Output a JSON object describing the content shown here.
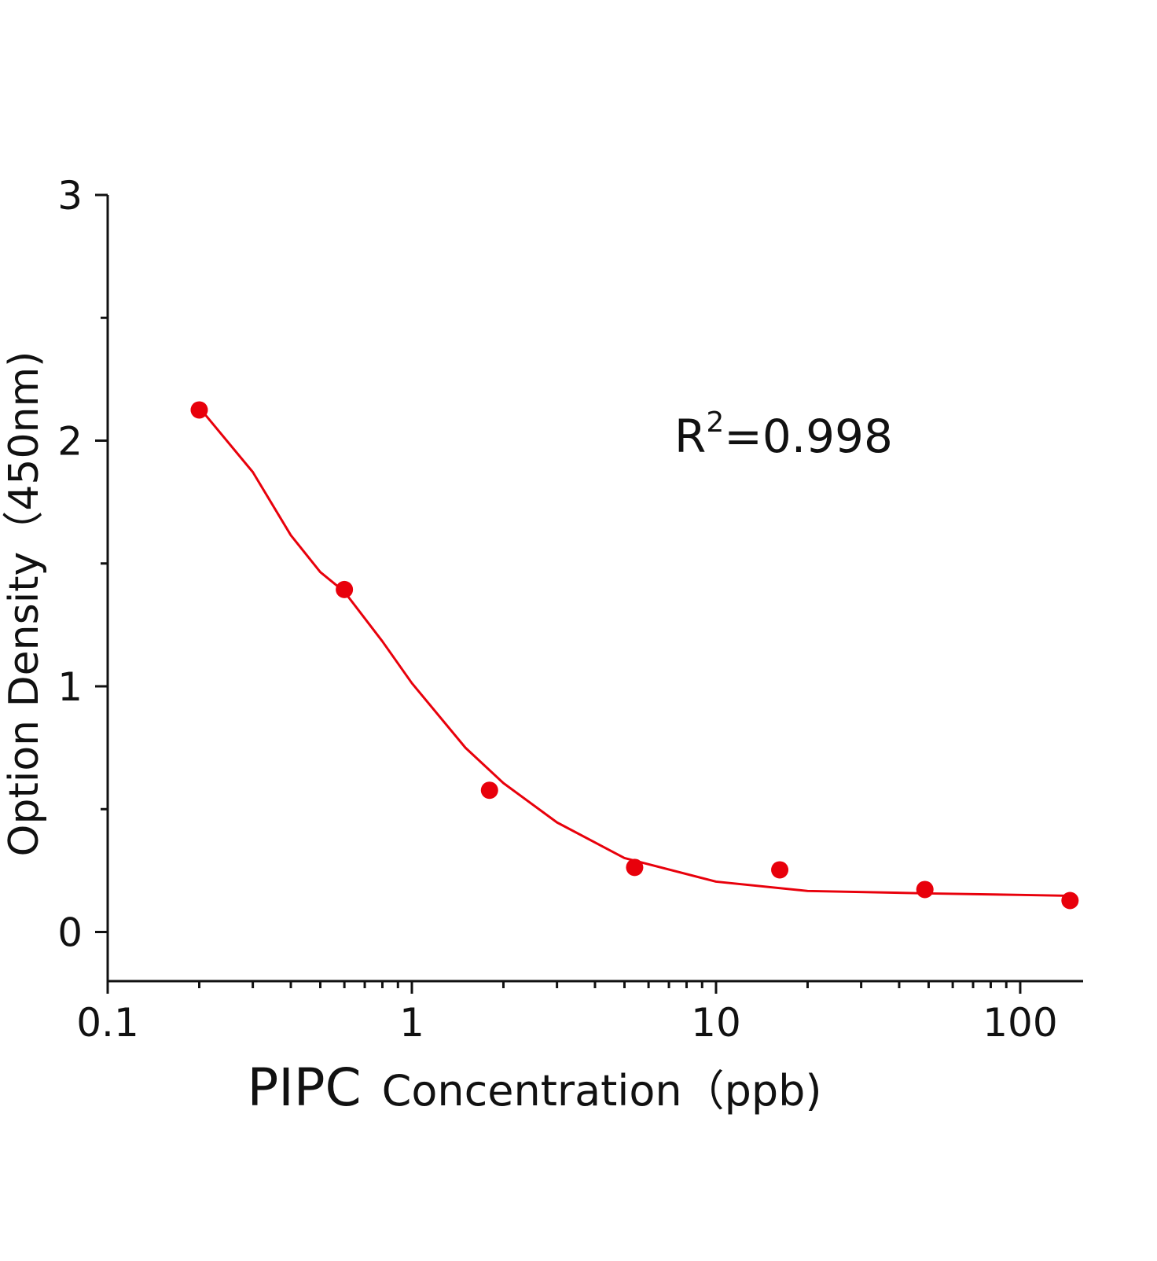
{
  "chart_data": {
    "type": "scatter",
    "xlabel": [
      "PIPC",
      "Concentration（ppb)"
    ],
    "ylabel": "Option Density（450nm)",
    "annotation": {
      "base": "R",
      "sup": "2",
      "text": "=0.998"
    },
    "xscale": "log",
    "xlim": [
      0.1,
      161
    ],
    "xticks": [
      0.1,
      1,
      10,
      100
    ],
    "ylim": [
      -0.2,
      3
    ],
    "yticks": [
      0,
      1,
      2,
      3
    ],
    "x": [
      0.2,
      0.6,
      1.8,
      5.4,
      16.2,
      48.6,
      145.8
    ],
    "series": [
      {
        "color": "#e8000b",
        "values": [
          2.125,
          1.394,
          0.577,
          0.263,
          0.253,
          0.173,
          0.128
        ]
      }
    ],
    "fit": {
      "color": "#e8000b",
      "x": [
        0.2,
        0.3,
        0.4,
        0.5,
        0.6,
        0.8,
        1,
        1.5,
        2,
        3,
        5,
        10,
        20,
        50,
        100,
        150
      ],
      "values": [
        2.135,
        1.872,
        1.615,
        1.465,
        1.385,
        1.183,
        1.013,
        0.75,
        0.606,
        0.446,
        0.301,
        0.205,
        0.167,
        0.157,
        0.151,
        0.147
      ]
    }
  }
}
